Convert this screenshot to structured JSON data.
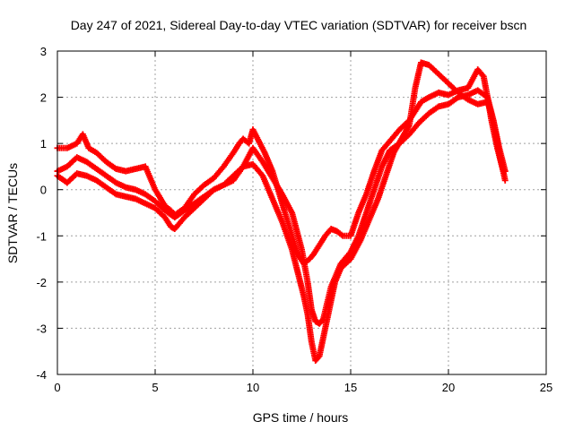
{
  "chart_data": {
    "type": "scatter",
    "title": "Day 247 of 2021, Sidereal Day-to-day VTEC variation (SDTVAR) for receiver bscn",
    "xlabel": "GPS time / hours",
    "ylabel": "SDTVAR / TECUs",
    "xlim": [
      0,
      25
    ],
    "ylim": [
      -4,
      3
    ],
    "xticks": [
      0,
      5,
      10,
      15,
      20,
      25
    ],
    "yticks": [
      -4,
      -3,
      -2,
      -1,
      0,
      1,
      2,
      3
    ],
    "grid": true,
    "marker": "+",
    "color": "#ff0000",
    "series": [
      {
        "x": [
          0.0,
          0.5,
          1.0,
          1.3,
          1.6,
          2.0,
          2.5,
          3.0,
          3.5,
          4.0,
          4.5,
          5.0,
          5.5,
          5.8,
          6.0,
          6.5,
          7.0,
          7.5,
          8.0,
          8.5,
          9.0,
          9.3,
          9.5,
          9.8,
          10.0,
          10.3,
          10.6,
          11.0,
          11.5,
          12.0,
          12.3,
          12.6,
          12.9,
          13.1,
          13.4,
          13.7,
          14.0,
          14.3,
          14.6,
          15.0,
          15.4,
          15.8,
          16.2,
          16.6,
          17.0,
          17.5,
          18.0,
          18.3,
          18.6,
          19.0,
          19.5,
          20.0,
          20.5,
          21.0,
          21.5,
          21.8,
          22.0,
          22.2,
          22.5,
          22.8
        ],
        "y": [
          0.9,
          0.9,
          1.0,
          1.2,
          0.9,
          0.8,
          0.6,
          0.45,
          0.4,
          0.45,
          0.5,
          0.0,
          -0.35,
          -0.45,
          -0.55,
          -0.4,
          -0.1,
          0.1,
          0.25,
          0.5,
          0.8,
          1.0,
          1.1,
          1.0,
          1.3,
          1.05,
          0.8,
          0.4,
          -0.3,
          -1.0,
          -1.4,
          -1.6,
          -1.5,
          -1.4,
          -1.2,
          -1.0,
          -0.85,
          -0.9,
          -1.0,
          -1.0,
          -0.5,
          -0.1,
          0.4,
          0.85,
          1.05,
          1.3,
          1.5,
          1.7,
          1.9,
          2.0,
          2.1,
          2.05,
          2.15,
          2.2,
          2.6,
          2.45,
          2.0,
          1.5,
          0.9,
          0.4
        ]
      },
      {
        "x": [
          0.0,
          0.5,
          1.0,
          1.5,
          2.0,
          2.5,
          3.0,
          3.5,
          4.0,
          4.5,
          5.0,
          5.5,
          6.0,
          6.5,
          7.0,
          7.5,
          8.0,
          8.5,
          9.0,
          9.5,
          10.0,
          10.5,
          11.0,
          11.5,
          12.0,
          12.5,
          12.8,
          13.0,
          13.2,
          13.4,
          13.6,
          14.0,
          14.5,
          15.0,
          15.4,
          15.8,
          16.2,
          16.6,
          17.0,
          17.5,
          18.0,
          18.5,
          19.0,
          19.5,
          20.0,
          20.5,
          21.0,
          21.5,
          22.0,
          22.3,
          22.6,
          22.9
        ],
        "y": [
          0.4,
          0.5,
          0.7,
          0.6,
          0.45,
          0.3,
          0.15,
          0.05,
          0.0,
          -0.1,
          -0.25,
          -0.45,
          -0.6,
          -0.45,
          -0.3,
          -0.15,
          0.0,
          0.1,
          0.2,
          0.5,
          0.9,
          0.6,
          0.25,
          -0.1,
          -0.5,
          -1.3,
          -2.0,
          -2.6,
          -2.85,
          -2.9,
          -2.8,
          -2.1,
          -1.6,
          -1.35,
          -1.0,
          -0.5,
          0.0,
          0.5,
          0.85,
          1.0,
          1.2,
          1.45,
          1.65,
          1.8,
          1.85,
          2.0,
          2.05,
          2.15,
          2.0,
          1.5,
          0.9,
          0.4
        ]
      },
      {
        "x": [
          0.0,
          0.5,
          1.0,
          1.5,
          2.0,
          2.5,
          3.0,
          3.5,
          4.0,
          4.5,
          5.0,
          5.5,
          5.8,
          6.0,
          6.5,
          7.0,
          7.5,
          8.0,
          8.5,
          9.0,
          9.5,
          10.0,
          10.5,
          11.0,
          11.5,
          12.0,
          12.3,
          12.6,
          12.8,
          13.0,
          13.2,
          13.4,
          13.6,
          13.9,
          14.2,
          14.5,
          15.0,
          15.5,
          16.0,
          16.4,
          16.8,
          17.2,
          17.6,
          18.0,
          18.3,
          18.6,
          19.0,
          19.5,
          20.0,
          20.5,
          21.0,
          21.5,
          22.0,
          22.3,
          22.6,
          22.9
        ],
        "y": [
          0.3,
          0.15,
          0.35,
          0.3,
          0.2,
          0.05,
          -0.1,
          -0.15,
          -0.2,
          -0.3,
          -0.4,
          -0.6,
          -0.8,
          -0.85,
          -0.6,
          -0.4,
          -0.2,
          0.0,
          0.1,
          0.3,
          0.5,
          0.55,
          0.3,
          -0.2,
          -0.7,
          -1.3,
          -1.8,
          -2.3,
          -2.7,
          -3.3,
          -3.7,
          -3.6,
          -3.2,
          -2.6,
          -2.0,
          -1.7,
          -1.5,
          -1.1,
          -0.6,
          -0.2,
          0.3,
          0.8,
          1.1,
          1.4,
          2.2,
          2.75,
          2.7,
          2.5,
          2.3,
          2.1,
          1.95,
          1.85,
          1.9,
          1.5,
          0.8,
          0.2
        ]
      }
    ]
  }
}
